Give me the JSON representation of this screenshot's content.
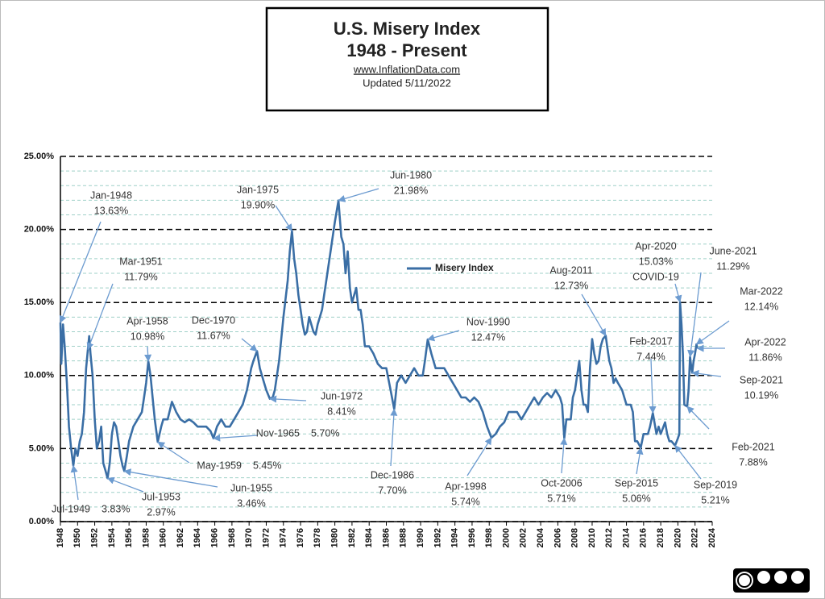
{
  "chart_data": {
    "type": "line",
    "title": "U.S. Misery Index",
    "subtitle": "1948 - Present",
    "source": "www.InflationData.com",
    "updated": "Updated  5/11/2022",
    "xlim": [
      1948,
      2024
    ],
    "xticks": [
      1948,
      1950,
      1952,
      1954,
      1956,
      1958,
      1960,
      1962,
      1964,
      1966,
      1968,
      1970,
      1972,
      1974,
      1976,
      1978,
      1980,
      1982,
      1984,
      1986,
      1988,
      1990,
      1992,
      1994,
      1996,
      1998,
      2000,
      2002,
      2004,
      2006,
      2008,
      2010,
      2012,
      2014,
      2016,
      2018,
      2020,
      2022,
      2024
    ],
    "ylim": [
      0,
      25
    ],
    "yticks": [
      {
        "value": 0,
        "label": "0.00%"
      },
      {
        "value": 5,
        "label": "5.00%"
      },
      {
        "value": 10,
        "label": "10.00%"
      },
      {
        "value": 15,
        "label": "15.00%"
      },
      {
        "value": 20,
        "label": "20.00%"
      },
      {
        "value": 25,
        "label": "25.00%"
      }
    ],
    "minor_yticks": [
      1,
      2,
      3,
      4,
      6,
      7,
      8,
      9,
      11,
      12,
      13,
      14,
      16,
      17,
      18,
      19,
      21,
      22,
      23,
      24
    ],
    "grid": true,
    "legend": "center",
    "x": [
      1948.0,
      1948.1,
      1948.3,
      1948.5,
      1948.75,
      1949.0,
      1949.25,
      1949.5,
      1949.75,
      1950.0,
      1950.25,
      1950.5,
      1950.75,
      1951.0,
      1951.2,
      1951.35,
      1951.5,
      1951.75,
      1952.0,
      1952.25,
      1952.5,
      1952.75,
      1953.0,
      1953.25,
      1953.5,
      1953.75,
      1954.0,
      1954.25,
      1954.5,
      1954.75,
      1955.0,
      1955.25,
      1955.45,
      1955.75,
      1956.0,
      1956.5,
      1957.0,
      1957.5,
      1957.75,
      1958.0,
      1958.25,
      1958.5,
      1958.75,
      1959.0,
      1959.35,
      1959.75,
      1960.0,
      1960.5,
      1961.0,
      1961.5,
      1962.0,
      1962.5,
      1963.0,
      1963.5,
      1964.0,
      1964.5,
      1965.0,
      1965.5,
      1965.85,
      1966.25,
      1966.75,
      1967.25,
      1967.75,
      1968.25,
      1968.75,
      1969.25,
      1969.75,
      1970.25,
      1970.5,
      1970.92,
      1971.25,
      1971.75,
      1972.0,
      1972.42,
      1972.75,
      1973.0,
      1973.5,
      1973.75,
      1974.0,
      1974.5,
      1974.75,
      1975.0,
      1975.25,
      1975.5,
      1975.75,
      1976.0,
      1976.25,
      1976.5,
      1976.75,
      1977.0,
      1977.25,
      1977.5,
      1977.75,
      1978.0,
      1978.5,
      1978.75,
      1979.0,
      1979.5,
      1980.0,
      1980.42,
      1980.75,
      1981.0,
      1981.25,
      1981.5,
      1981.75,
      1982.0,
      1982.5,
      1982.75,
      1983.0,
      1983.25,
      1983.5,
      1983.75,
      1984.0,
      1984.5,
      1985.0,
      1985.5,
      1986.0,
      1986.5,
      1986.92,
      1987.25,
      1987.75,
      1988.25,
      1988.75,
      1989.25,
      1989.75,
      1990.25,
      1990.5,
      1990.83,
      1991.25,
      1991.75,
      1992.25,
      1992.75,
      1993.25,
      1993.75,
      1994.25,
      1994.75,
      1995.25,
      1995.75,
      1996.25,
      1996.75,
      1997.25,
      1997.75,
      1998.25,
      1998.75,
      1999.25,
      1999.75,
      2000.25,
      2000.75,
      2001.25,
      2001.75,
      2002.25,
      2002.75,
      2003.25,
      2003.75,
      2004.25,
      2004.75,
      2005.25,
      2005.75,
      2006.25,
      2006.5,
      2006.75,
      2007.0,
      2007.5,
      2007.75,
      2008.0,
      2008.5,
      2008.75,
      2009.0,
      2009.25,
      2009.5,
      2009.75,
      2010.0,
      2010.25,
      2010.5,
      2010.75,
      2011.0,
      2011.25,
      2011.58,
      2011.75,
      2012.0,
      2012.25,
      2012.5,
      2012.75,
      2013.0,
      2013.5,
      2013.75,
      2014.0,
      2014.5,
      2014.75,
      2015.0,
      2015.25,
      2015.67,
      2016.0,
      2016.5,
      2016.75,
      2017.08,
      2017.5,
      2017.75,
      2018.0,
      2018.5,
      2018.75,
      2019.0,
      2019.25,
      2019.67,
      2020.0,
      2020.17,
      2020.25,
      2020.42,
      2020.58,
      2020.75,
      2021.08,
      2021.25,
      2021.42,
      2021.58,
      2021.67,
      2021.83,
      2022.0,
      2022.17,
      2022.25
    ],
    "series": [
      {
        "name": "Misery Index",
        "color": "#3a6ea5",
        "values": [
          13.63,
          10.8,
          13.5,
          12.0,
          9.5,
          6.5,
          5.0,
          3.83,
          5.0,
          4.5,
          5.5,
          6.0,
          7.5,
          10.5,
          11.79,
          12.7,
          11.5,
          10.0,
          7.0,
          5.0,
          5.5,
          6.5,
          4.0,
          3.5,
          2.97,
          4.0,
          6.0,
          6.8,
          6.5,
          5.5,
          4.5,
          3.8,
          3.46,
          4.5,
          5.5,
          6.5,
          7.0,
          7.5,
          8.5,
          9.5,
          10.98,
          10.0,
          8.5,
          7.0,
          5.45,
          6.5,
          7.0,
          7.0,
          8.2,
          7.5,
          7.0,
          6.8,
          7.0,
          6.8,
          6.5,
          6.5,
          6.5,
          6.2,
          5.7,
          6.5,
          7.0,
          6.5,
          6.5,
          7.0,
          7.5,
          8.0,
          9.0,
          10.5,
          11.0,
          11.67,
          10.5,
          9.5,
          9.0,
          8.41,
          8.5,
          9.0,
          11.0,
          12.5,
          14.0,
          16.5,
          18.5,
          19.9,
          18.0,
          17.0,
          15.5,
          14.5,
          13.5,
          12.8,
          13.0,
          14.0,
          13.5,
          13.0,
          12.8,
          13.5,
          14.5,
          15.5,
          16.5,
          18.5,
          20.5,
          21.98,
          19.5,
          19.0,
          17.0,
          18.5,
          16.0,
          15.0,
          16.0,
          14.5,
          14.5,
          13.5,
          12.0,
          12.0,
          12.0,
          11.5,
          10.8,
          10.5,
          10.5,
          9.0,
          7.7,
          9.5,
          10.0,
          9.5,
          10.0,
          10.5,
          10.0,
          10.0,
          11.0,
          12.47,
          11.5,
          10.5,
          10.5,
          10.5,
          10.0,
          9.5,
          9.0,
          8.5,
          8.5,
          8.2,
          8.5,
          8.2,
          7.5,
          6.5,
          5.74,
          6.0,
          6.5,
          6.8,
          7.5,
          7.5,
          7.5,
          7.0,
          7.5,
          8.0,
          8.5,
          8.0,
          8.5,
          8.8,
          8.5,
          9.0,
          8.5,
          8.0,
          5.71,
          7.0,
          7.0,
          8.5,
          9.0,
          11.0,
          9.0,
          8.0,
          8.0,
          7.5,
          10.5,
          12.5,
          11.5,
          10.8,
          11.0,
          12.0,
          12.5,
          12.73,
          12.0,
          11.0,
          10.5,
          9.5,
          9.8,
          9.5,
          9.0,
          8.5,
          8.0,
          8.0,
          7.5,
          5.5,
          5.5,
          5.06,
          6.0,
          6.0,
          6.5,
          7.44,
          6.0,
          6.5,
          6.0,
          6.8,
          6.0,
          5.5,
          5.5,
          5.21,
          5.7,
          6.0,
          15.03,
          13.5,
          11.5,
          8.0,
          7.88,
          9.0,
          11.29,
          10.5,
          10.19,
          11.0,
          11.5,
          12.14,
          11.86
        ]
      }
    ],
    "annotations": [
      {
        "label": "Jan-1948",
        "value": 13.63,
        "value_label": "13.63%",
        "x": 1948.0
      },
      {
        "label": "Jul-1949",
        "value": 3.83,
        "value_label": "3.83%",
        "x": 1949.5
      },
      {
        "label": "Mar-1951",
        "value": 11.79,
        "value_label": "11.79%",
        "x": 1951.2
      },
      {
        "label": "Jul-1953",
        "value": 2.97,
        "value_label": "2.97%",
        "x": 1953.5
      },
      {
        "label": "Jun-1955",
        "value": 3.46,
        "value_label": "3.46%",
        "x": 1955.45
      },
      {
        "label": "Apr-1958",
        "value": 10.98,
        "value_label": "10.98%",
        "x": 1958.25
      },
      {
        "label": "May-1959",
        "value": 5.45,
        "value_label": "5.45%",
        "x": 1959.35
      },
      {
        "label": "Nov-1965",
        "value": 5.7,
        "value_label": "5.70%",
        "x": 1965.85
      },
      {
        "label": "Dec-1970",
        "value": 11.67,
        "value_label": "11.67%",
        "x": 1970.92
      },
      {
        "label": "Jun-1972",
        "value": 8.41,
        "value_label": "8.41%",
        "x": 1972.42
      },
      {
        "label": "Jan-1975",
        "value": 19.9,
        "value_label": "19.90%",
        "x": 1975.0
      },
      {
        "label": "Jun-1980",
        "value": 21.98,
        "value_label": "21.98%",
        "x": 1980.42
      },
      {
        "label": "Dec-1986",
        "value": 7.7,
        "value_label": "7.70%",
        "x": 1986.92
      },
      {
        "label": "Nov-1990",
        "value": 12.47,
        "value_label": "12.47%",
        "x": 1990.83
      },
      {
        "label": "Apr-1998",
        "value": 5.74,
        "value_label": "5.74%",
        "x": 1998.25
      },
      {
        "label": "Oct-2006",
        "value": 5.71,
        "value_label": "5.71%",
        "x": 2006.75
      },
      {
        "label": "Aug-2011",
        "value": 12.73,
        "value_label": "12.73%",
        "x": 2011.58
      },
      {
        "label": "Feb-2017",
        "value": 7.44,
        "value_label": "7.44%",
        "x": 2017.08
      },
      {
        "label": "Sep-2015",
        "value": 5.06,
        "value_label": "5.06%",
        "x": 2015.67
      },
      {
        "label": "Sep-2019",
        "value": 5.21,
        "value_label": "5.21%",
        "x": 2019.67
      },
      {
        "label": "Apr-2020",
        "value": 15.03,
        "value_label": "15.03%",
        "x": 2020.25,
        "note": "COVID-19"
      },
      {
        "label": "June-2021",
        "value": 11.29,
        "value_label": "11.29%",
        "x": 2021.42
      },
      {
        "label": "Mar-2022",
        "value": 12.14,
        "value_label": "12.14%",
        "x": 2022.17
      },
      {
        "label": "Apr-2022",
        "value": 11.86,
        "value_label": "11.86%",
        "x": 2022.25
      },
      {
        "label": "Sep-2021",
        "value": 10.19,
        "value_label": "10.19%",
        "x": 2021.67
      },
      {
        "label": "Feb-2021",
        "value": 7.88,
        "value_label": "7.88%",
        "x": 2021.08
      }
    ]
  }
}
